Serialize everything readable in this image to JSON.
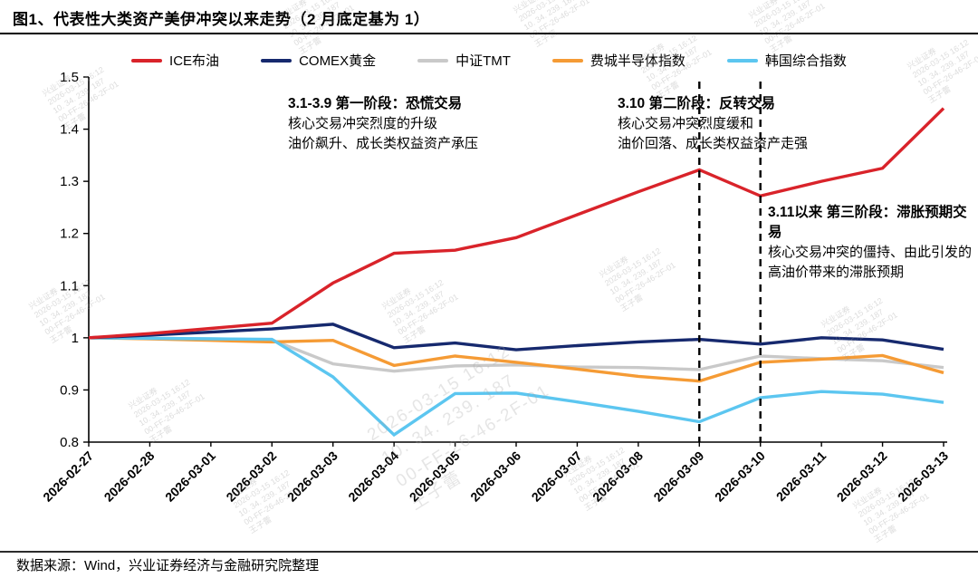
{
  "page": {
    "title": "图1、代表性大类资产美伊冲突以来走势（2 月底定基为 1）",
    "source_note": "数据来源：Wind，兴业证券经济与金融研究院整理"
  },
  "watermark": {
    "lines": [
      "兴业证券",
      "2026-03-15 16:12",
      "10. 34. 239. 187",
      "00-FF-26-46-2F-01",
      "王子蕾"
    ]
  },
  "chart_data": {
    "type": "line",
    "title": "代表性大类资产美伊冲突以来走势（2月底定基为1）",
    "xlabel": "",
    "ylabel": "",
    "ylim": [
      0.8,
      1.5
    ],
    "yticks": [
      1.5,
      1.4,
      1.3,
      1.2,
      1.1,
      1,
      0.9,
      0.8
    ],
    "grid": false,
    "legend_position": "top",
    "x": [
      "2026-02-27",
      "2026-02-28",
      "2026-03-01",
      "2026-03-02",
      "2026-03-03",
      "2026-03-04",
      "2026-03-05",
      "2026-03-06",
      "2026-03-07",
      "2026-03-08",
      "2026-03-09",
      "2026-03-10",
      "2026-03-11",
      "2026-03-12",
      "2026-03-13"
    ],
    "series": [
      {
        "name": "ICE布油",
        "color": "#d9232a",
        "values": [
          1,
          1.008,
          1.018,
          1.028,
          1.105,
          1.162,
          1.168,
          1.192,
          1.236,
          1.28,
          1.322,
          1.272,
          1.3,
          1.325,
          1.44
        ]
      },
      {
        "name": "COMEX黄金",
        "color": "#16296e",
        "values": [
          1,
          1.005,
          1.011,
          1.017,
          1.026,
          0.981,
          0.99,
          0.977,
          0.985,
          0.992,
          0.997,
          0.988,
          1.0,
          0.996,
          0.978
        ]
      },
      {
        "name": "中证TMT",
        "color": "#c9c9c9",
        "values": [
          1,
          0.999,
          0.998,
          0.996,
          0.95,
          0.936,
          0.946,
          0.948,
          0.944,
          0.943,
          0.939,
          0.965,
          0.96,
          0.956,
          0.943
        ]
      },
      {
        "name": "费城半导体指数",
        "color": "#f59b35",
        "values": [
          1,
          0.998,
          0.995,
          0.992,
          0.995,
          0.947,
          0.965,
          0.953,
          0.94,
          0.926,
          0.917,
          0.953,
          0.959,
          0.966,
          0.933
        ]
      },
      {
        "name": "韩国综合指数",
        "color": "#5cc6f0",
        "values": [
          1,
          0.999,
          0.998,
          0.997,
          0.925,
          0.814,
          0.893,
          0.894,
          0.877,
          0.859,
          0.839,
          0.885,
          0.897,
          0.892,
          0.876
        ]
      }
    ],
    "vlines": [
      "2026-03-09",
      "2026-03-10"
    ],
    "annotations": [
      {
        "title": "3.1-3.9 第一阶段：恐慌交易",
        "lines": [
          "核心交易冲突烈度的升级",
          "油价飙升、成长类权益资产承压"
        ]
      },
      {
        "title": "3.10 第二阶段：反转交易",
        "lines": [
          "核心交易冲突烈度缓和",
          "油价回落、成长类权益资产走强"
        ]
      },
      {
        "title": "3.11以来 第三阶段：滞胀预期交易",
        "lines": [
          "核心交易冲突的僵持、由此引发的高油价带来的滞胀预期"
        ]
      }
    ]
  }
}
